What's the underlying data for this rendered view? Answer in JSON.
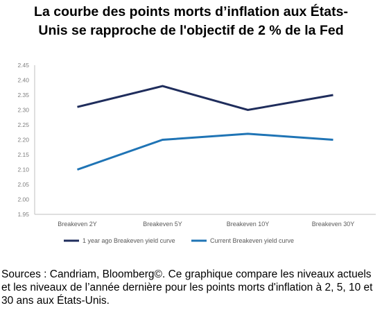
{
  "title_line1": "La courbe des points morts d’inflation aux États-",
  "title_line2": "Unis se rapproche de l'objectif de 2 % de la Fed",
  "source": "Sources : Candriam, Bloomberg©. Ce graphique compare les niveaux actuels et les niveaux de l’année dernière pour les points morts d'inflation à 2, 5, 10 et 30 ans aux États-Unis.",
  "chart_data": {
    "type": "line",
    "categories": [
      "Breakeven 2Y",
      "Breakeven 5Y",
      "Breakeven 10Y",
      "Breakeven 30Y"
    ],
    "series": [
      {
        "name": "1 year ago Breakeven yield curve",
        "values": [
          2.31,
          2.38,
          2.3,
          2.35
        ],
        "color": "#1f2d5c"
      },
      {
        "name": "Current Breakeven yield curve",
        "values": [
          2.1,
          2.2,
          2.22,
          2.2
        ],
        "color": "#1f74b5"
      }
    ],
    "ylim": [
      1.95,
      2.45
    ],
    "yticks": [
      "1.95",
      "2.00",
      "2.05",
      "2.10",
      "2.15",
      "2.20",
      "2.25",
      "2.30",
      "2.35",
      "2.40",
      "2.45"
    ],
    "legend_position": "bottom",
    "grid": false
  }
}
